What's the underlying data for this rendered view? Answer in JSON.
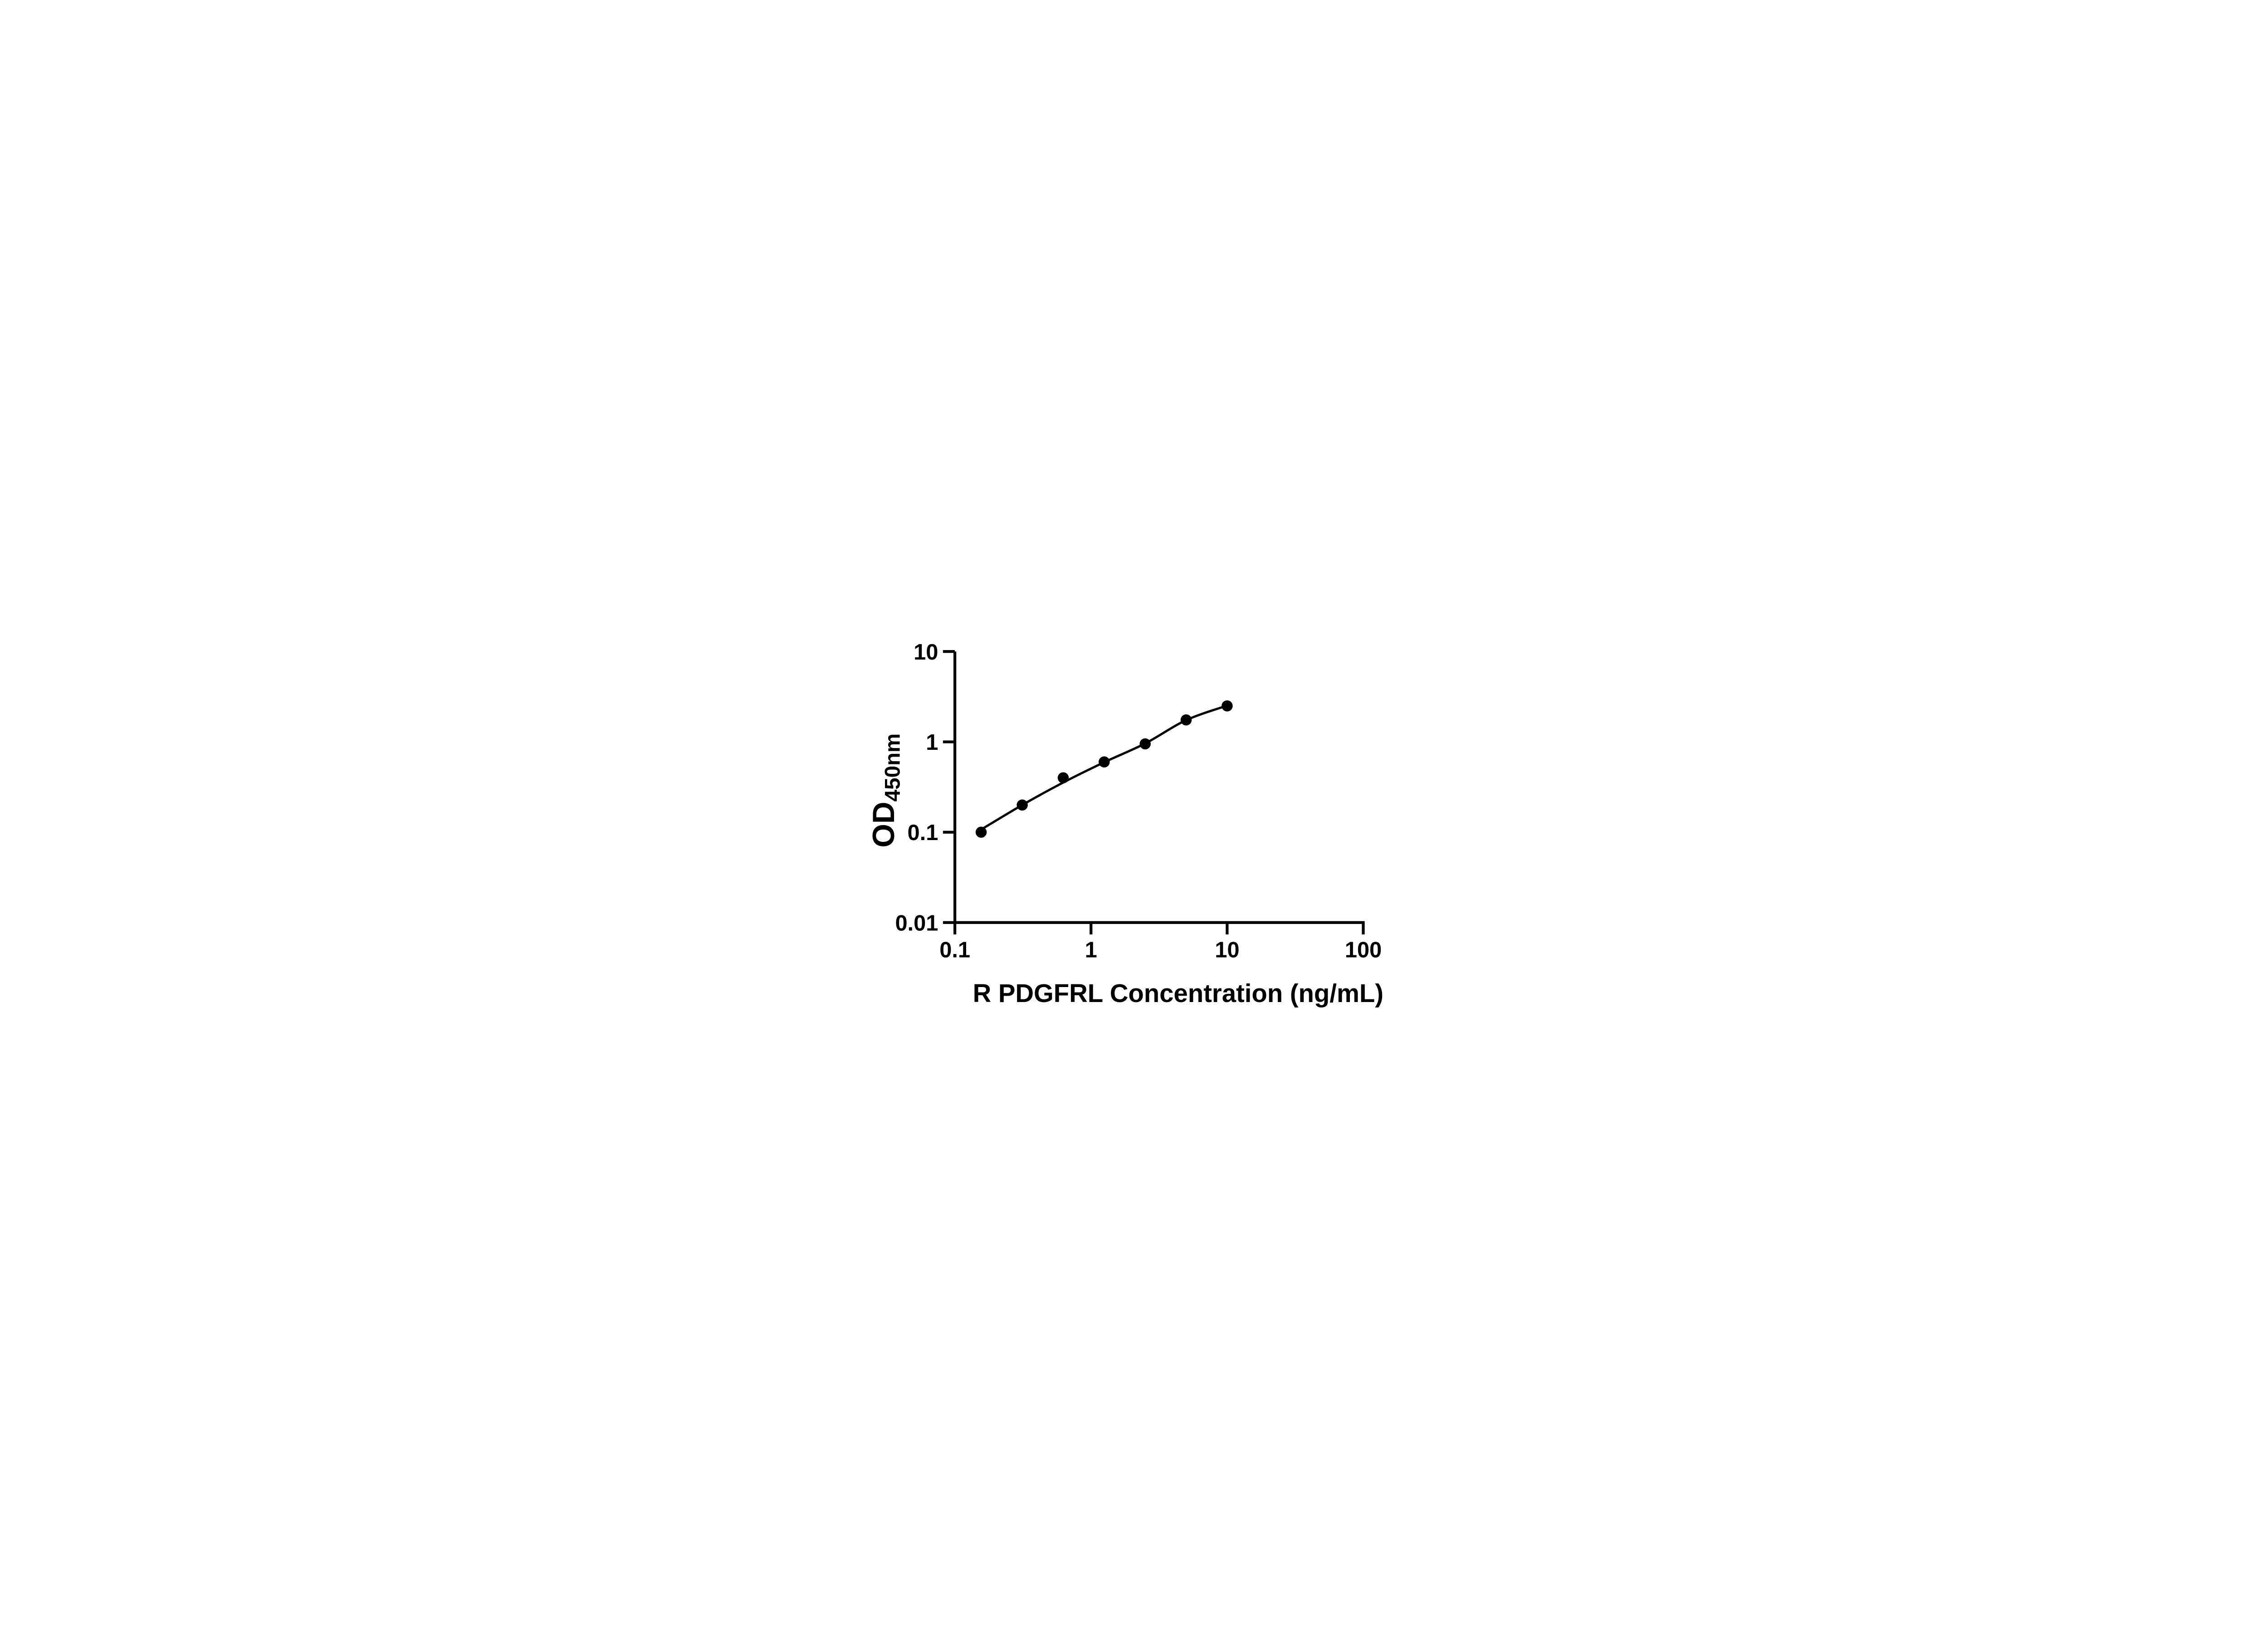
{
  "figure": {
    "background_color": "#ffffff",
    "ink_color": "#000000"
  },
  "chart_data": {
    "type": "scatter",
    "title": "",
    "xlabel": "R PDGFRL Concentration (ng/mL)",
    "ylabel": "OD450nm",
    "ylabel_main": "OD",
    "ylabel_subscript": "450nm",
    "x_scale": "log10",
    "y_scale": "log10",
    "xlim": [
      0.1,
      100
    ],
    "ylim": [
      0.01,
      10
    ],
    "x_ticks": [
      {
        "value": 0.1,
        "label": "0.1"
      },
      {
        "value": 1,
        "label": "1"
      },
      {
        "value": 10,
        "label": "10"
      },
      {
        "value": 100,
        "label": "100"
      }
    ],
    "y_ticks": [
      {
        "value": 10,
        "label": "10"
      },
      {
        "value": 1,
        "label": "1"
      },
      {
        "value": 0.1,
        "label": "0.1"
      },
      {
        "value": 0.01,
        "label": "0.01"
      }
    ],
    "grid": false,
    "legend_position": "none",
    "marker_style": "filled-black-circle",
    "series": [
      {
        "name": "standard-curve-points",
        "x": [
          0.156,
          0.3125,
          0.625,
          1.25,
          2.5,
          5,
          10
        ],
        "y": [
          0.1,
          0.2,
          0.4,
          0.6,
          0.95,
          1.75,
          2.5
        ]
      }
    ],
    "fit_curve": {
      "name": "standard-curve-fit-line",
      "x": [
        0.156,
        0.3125,
        0.625,
        1.25,
        2.5,
        5,
        10
      ],
      "y": [
        0.107,
        0.2,
        0.355,
        0.595,
        0.96,
        1.74,
        2.52
      ]
    }
  }
}
